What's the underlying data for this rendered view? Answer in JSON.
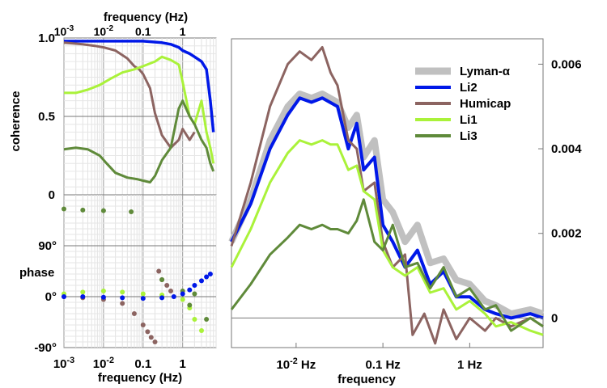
{
  "chart_data": [
    {
      "id": "coherence",
      "type": "line",
      "title": "",
      "xlabel_top": "frequency (Hz)",
      "ylabel": "coherence",
      "x_scale": "log",
      "xlim": [
        0.001,
        7
      ],
      "ylim": [
        0,
        1
      ],
      "x_tick_labels": [
        "10-3",
        "10-2",
        "0.1",
        "1"
      ],
      "y_tick_labels": [
        "0",
        "0.5",
        "1.0"
      ],
      "grid": true,
      "series": [
        {
          "name": "Li2",
          "color": "#0018e8",
          "x": [
            0.001,
            0.005,
            0.02,
            0.1,
            0.3,
            0.5,
            0.8,
            1.0,
            1.5,
            2.0,
            3.0,
            4.0,
            5.0,
            6.0
          ],
          "y": [
            0.98,
            0.98,
            0.98,
            0.98,
            0.97,
            0.96,
            0.94,
            0.92,
            0.9,
            0.88,
            0.85,
            0.8,
            0.6,
            0.4
          ]
        },
        {
          "name": "Humicap",
          "color": "#8c6461",
          "x": [
            0.001,
            0.003,
            0.006,
            0.01,
            0.02,
            0.04,
            0.06,
            0.08,
            0.1,
            0.15,
            0.2,
            0.3,
            0.5,
            0.8,
            1.0,
            1.5,
            2.0
          ],
          "y": [
            0.97,
            0.96,
            0.95,
            0.94,
            0.92,
            0.87,
            0.82,
            0.8,
            0.77,
            0.68,
            0.52,
            0.38,
            0.3,
            0.35,
            0.42,
            0.35,
            0.4
          ]
        },
        {
          "name": "Li1",
          "color": "#aaf23a",
          "x": [
            0.001,
            0.002,
            0.004,
            0.008,
            0.015,
            0.03,
            0.06,
            0.1,
            0.2,
            0.3,
            0.5,
            0.8,
            1.0,
            1.5,
            2.0,
            3.0,
            4.0,
            5.0,
            6.0
          ],
          "y": [
            0.65,
            0.65,
            0.67,
            0.7,
            0.74,
            0.78,
            0.8,
            0.82,
            0.85,
            0.88,
            0.86,
            0.83,
            0.72,
            0.5,
            0.45,
            0.6,
            0.4,
            0.3,
            0.2
          ]
        },
        {
          "name": "Li3",
          "color": "#5f8a3a",
          "x": [
            0.001,
            0.002,
            0.004,
            0.008,
            0.012,
            0.02,
            0.04,
            0.07,
            0.1,
            0.15,
            0.2,
            0.3,
            0.5,
            0.8,
            1.0,
            1.5,
            2.0,
            3.0,
            4.0,
            5.0,
            6.0
          ],
          "y": [
            0.29,
            0.3,
            0.29,
            0.25,
            0.2,
            0.14,
            0.11,
            0.1,
            0.09,
            0.08,
            0.12,
            0.22,
            0.3,
            0.55,
            0.6,
            0.5,
            0.45,
            0.35,
            0.3,
            0.2,
            0.15
          ]
        }
      ]
    },
    {
      "id": "phase",
      "type": "scatter",
      "title": "",
      "xlabel": "frequency (Hz)",
      "ylabel": "phase",
      "x_scale": "log",
      "xlim": [
        0.001,
        7
      ],
      "ylim": [
        -90,
        180
      ],
      "x_tick_labels": [
        "10-3",
        "10-2",
        "0.1",
        "1"
      ],
      "y_tick_labels": [
        "-90°",
        "0°",
        "90°"
      ],
      "grid": true,
      "series": [
        {
          "name": "Humicap",
          "color": "#8c6461",
          "x": [
            0.001,
            0.003,
            0.01,
            0.03,
            0.06,
            0.1,
            0.13,
            0.16,
            0.2,
            0.25,
            0.3,
            0.4,
            0.5
          ],
          "y": [
            0,
            -2,
            -5,
            -12,
            -30,
            -50,
            -62,
            -72,
            -80,
            45,
            30,
            20,
            10
          ]
        },
        {
          "name": "Li1",
          "color": "#aaf23a",
          "x": [
            0.001,
            0.003,
            0.01,
            0.03,
            0.1,
            0.3,
            1.0,
            1.5,
            2.0,
            3.0
          ],
          "y": [
            5,
            8,
            10,
            8,
            5,
            3,
            -5,
            -20,
            -40,
            -60
          ]
        },
        {
          "name": "Li3",
          "color": "#5f8a3a",
          "x": [
            0.001,
            0.003,
            0.01,
            0.05,
            0.3,
            1.0,
            1.5,
            2.0,
            4.0
          ],
          "y": [
            155,
            153,
            152,
            150,
            30,
            10,
            -15,
            5,
            -40
          ]
        },
        {
          "name": "Li2",
          "color": "#0018e8",
          "x": [
            0.001,
            0.003,
            0.01,
            0.03,
            0.1,
            0.3,
            0.6,
            1.0,
            1.5,
            2.0,
            3.0,
            4.0,
            5.0
          ],
          "y": [
            0,
            0,
            -1,
            -2,
            -3,
            -2,
            0,
            5,
            12,
            20,
            28,
            35,
            40
          ]
        }
      ]
    },
    {
      "id": "spectrum",
      "type": "line",
      "title": "",
      "xlabel": "frequency",
      "ylabel": "",
      "x_scale": "log",
      "xlim": [
        0.0018,
        7
      ],
      "ylim": [
        -0.0007,
        0.0066
      ],
      "x_tick_labels": [
        "10-2 Hz",
        "0.1 Hz",
        "1 Hz"
      ],
      "y_tick_labels": [
        "0",
        "0.002",
        "0.004",
        "0.006"
      ],
      "grid": false,
      "legend": {
        "position": "top-right",
        "entries": [
          "Lyman-α",
          "Li2",
          "Humicap",
          "Li1",
          "Li3"
        ]
      },
      "series": [
        {
          "name": "Lyman-α",
          "color": "#c0c0c0",
          "x": [
            0.0018,
            0.003,
            0.005,
            0.008,
            0.011,
            0.015,
            0.02,
            0.03,
            0.04,
            0.05,
            0.06,
            0.08,
            0.1,
            0.13,
            0.18,
            0.25,
            0.35,
            0.5,
            0.7,
            1.0,
            1.5,
            2.0,
            3.0,
            5.0,
            7.0
          ],
          "y": [
            0.0018,
            0.0028,
            0.0042,
            0.005,
            0.0053,
            0.0052,
            0.0053,
            0.0051,
            0.0045,
            0.0048,
            0.0038,
            0.0042,
            0.0028,
            0.0025,
            0.0018,
            0.0022,
            0.0013,
            0.0014,
            0.0009,
            0.0008,
            0.0004,
            0.0003,
            0.0001,
            0.0002,
            0.0001
          ]
        },
        {
          "name": "Li2",
          "color": "#0018e8",
          "x": [
            0.0018,
            0.003,
            0.005,
            0.008,
            0.011,
            0.015,
            0.02,
            0.03,
            0.04,
            0.05,
            0.06,
            0.08,
            0.1,
            0.13,
            0.18,
            0.25,
            0.35,
            0.5,
            0.7,
            1.0,
            1.5,
            2.0,
            3.0,
            5.0,
            7.0
          ],
          "y": [
            0.0018,
            0.0027,
            0.004,
            0.0048,
            0.0052,
            0.0051,
            0.0052,
            0.005,
            0.004,
            0.0046,
            0.0035,
            0.0038,
            0.0022,
            0.0018,
            0.0012,
            0.0016,
            0.0008,
            0.0011,
            0.0005,
            0.0005,
            0.0002,
            0.0001,
            0.0,
            0.0001,
            0.0
          ]
        },
        {
          "name": "Humicap",
          "color": "#8c6461",
          "x": [
            0.0018,
            0.003,
            0.005,
            0.008,
            0.011,
            0.015,
            0.02,
            0.025,
            0.03,
            0.04,
            0.05,
            0.06,
            0.08,
            0.1,
            0.13,
            0.18,
            0.22,
            0.3,
            0.4,
            0.5,
            0.7,
            1.0,
            1.5,
            2.0,
            3.0,
            5.0,
            7.0
          ],
          "y": [
            0.0017,
            0.0032,
            0.005,
            0.006,
            0.0063,
            0.0061,
            0.0064,
            0.0058,
            0.0055,
            0.0042,
            0.004,
            0.003,
            0.0032,
            0.0018,
            0.0012,
            0.0015,
            -0.0004,
            0.0001,
            -0.0006,
            0.0002,
            -0.0005,
            0.0,
            -0.0003,
            0.0,
            -0.0002,
            0.0,
            -0.0002
          ]
        },
        {
          "name": "Li1",
          "color": "#aaf23a",
          "x": [
            0.0018,
            0.003,
            0.005,
            0.008,
            0.011,
            0.015,
            0.02,
            0.025,
            0.03,
            0.04,
            0.05,
            0.06,
            0.08,
            0.1,
            0.13,
            0.18,
            0.25,
            0.35,
            0.5,
            0.7,
            1.0,
            1.5,
            2.0,
            3.0,
            5.0,
            7.0
          ],
          "y": [
            0.0012,
            0.0021,
            0.0032,
            0.0039,
            0.0042,
            0.0041,
            0.0042,
            0.0041,
            0.0041,
            0.0035,
            0.0036,
            0.003,
            0.0028,
            0.0016,
            0.0012,
            0.001,
            0.0012,
            0.0006,
            0.0007,
            0.0002,
            0.0004,
            0.0001,
            -0.0002,
            -0.0001,
            -0.0003,
            -0.0004
          ]
        },
        {
          "name": "Li3",
          "color": "#5f8a3a",
          "x": [
            0.0018,
            0.003,
            0.005,
            0.008,
            0.011,
            0.015,
            0.02,
            0.025,
            0.03,
            0.04,
            0.05,
            0.06,
            0.08,
            0.1,
            0.13,
            0.18,
            0.25,
            0.35,
            0.5,
            0.7,
            1.0,
            1.5,
            2.0,
            3.0,
            5.0,
            7.0
          ],
          "y": [
            0.0002,
            0.0008,
            0.0015,
            0.0019,
            0.0022,
            0.0021,
            0.0022,
            0.0021,
            0.0021,
            0.002,
            0.0023,
            0.0028,
            0.0018,
            0.0016,
            0.0022,
            0.0012,
            0.0013,
            0.0007,
            0.0012,
            0.0005,
            0.0007,
            0.0002,
            0.0003,
            -0.0003,
            0.0,
            -0.0002
          ]
        }
      ]
    }
  ]
}
